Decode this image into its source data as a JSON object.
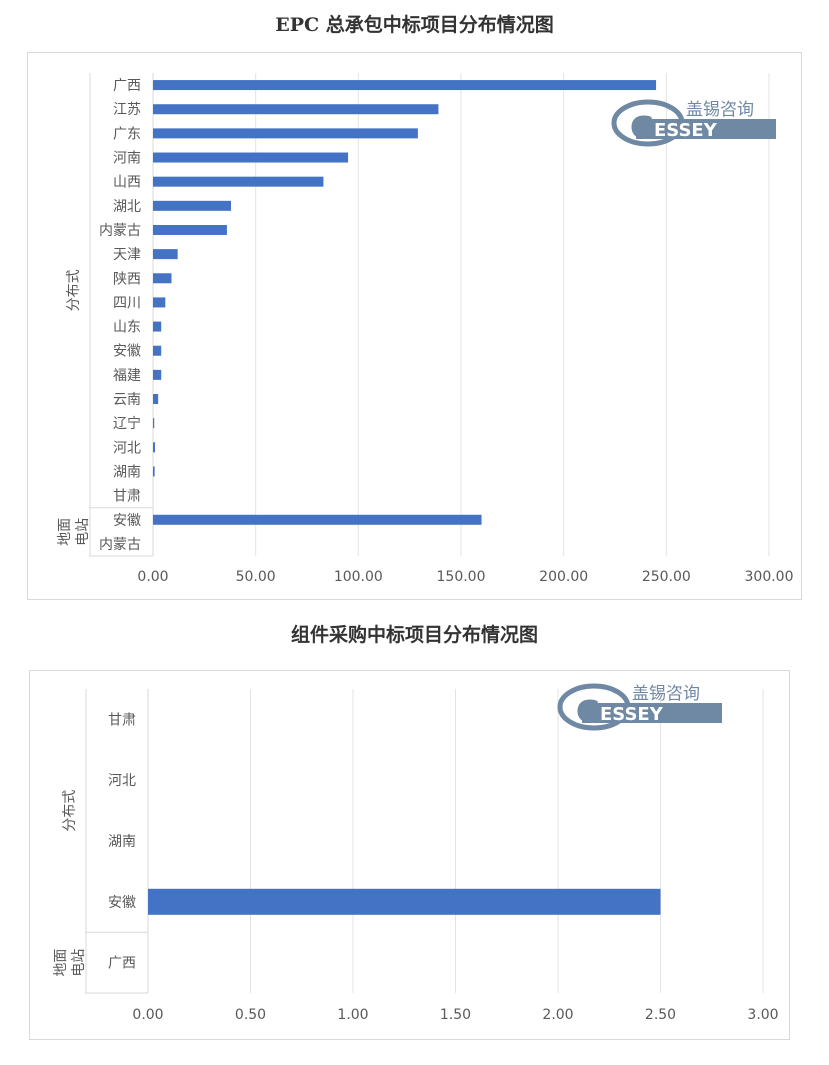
{
  "logo": {
    "text_cn": "盖锡咨询",
    "text_en": "ESSEY",
    "letter": "G"
  },
  "chart_data": [
    {
      "type": "bar",
      "orientation": "horizontal",
      "title": "EPC 总承包中标项目分布情况图",
      "groups": [
        {
          "label": "分布式",
          "categories": [
            "广西",
            "江苏",
            "广东",
            "河南",
            "山西",
            "湖北",
            "内蒙古",
            "天津",
            "陕西",
            "四川",
            "山东",
            "安徽",
            "福建",
            "云南",
            "辽宁",
            "河北",
            "湖南",
            "甘肃"
          ]
        },
        {
          "label": "地面电站",
          "categories": [
            "安徽",
            "内蒙古"
          ]
        }
      ],
      "categories": [
        "广西",
        "江苏",
        "广东",
        "河南",
        "山西",
        "湖北",
        "内蒙古",
        "天津",
        "陕西",
        "四川",
        "山东",
        "安徽",
        "福建",
        "云南",
        "辽宁",
        "河北",
        "湖南",
        "甘肃",
        "安徽",
        "内蒙古"
      ],
      "values": [
        245,
        139,
        129,
        95,
        83,
        38,
        36,
        12,
        9,
        6,
        4,
        4,
        4,
        2.5,
        0.6,
        1,
        0.8,
        0,
        160,
        0
      ],
      "xlim": [
        0,
        300
      ],
      "xticks": [
        "0.00",
        "50.00",
        "100.00",
        "150.00",
        "200.00",
        "250.00",
        "300.00"
      ],
      "grid": true
    },
    {
      "type": "bar",
      "orientation": "horizontal",
      "title": "组件采购中标项目分布情况图",
      "groups": [
        {
          "label": "分布式",
          "categories": [
            "甘肃",
            "河北",
            "湖南",
            "安徽"
          ]
        },
        {
          "label": "地面电站",
          "categories": [
            "广西"
          ]
        }
      ],
      "categories": [
        "甘肃",
        "河北",
        "湖南",
        "安徽",
        "广西"
      ],
      "values": [
        0,
        0,
        0,
        2.5,
        0
      ],
      "xlim": [
        0,
        3
      ],
      "xticks": [
        "0.00",
        "0.50",
        "1.00",
        "1.50",
        "2.00",
        "2.50",
        "3.00"
      ],
      "grid": true
    }
  ]
}
